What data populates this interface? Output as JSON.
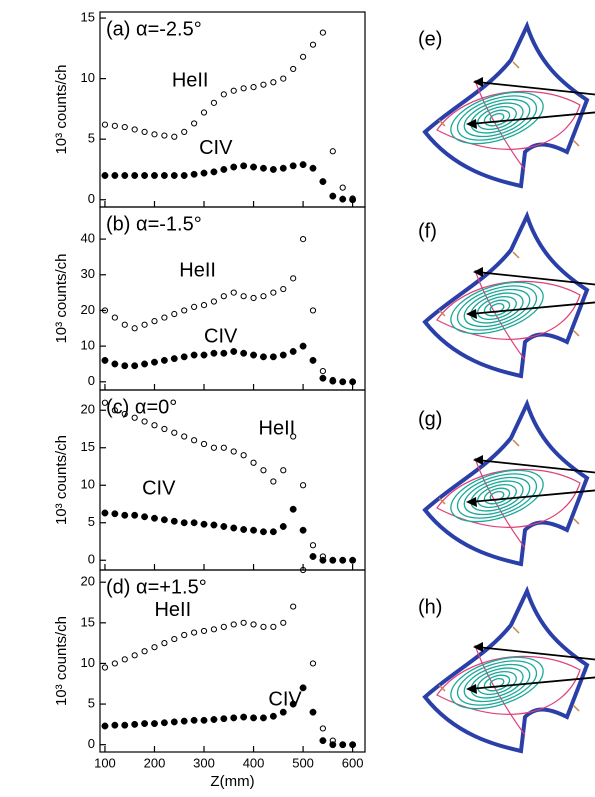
{
  "chart_data": [
    {
      "type": "scatter",
      "title": "(a) α=-2.5°",
      "ylabel": "10³ counts/ch",
      "x": [
        100,
        120,
        140,
        160,
        180,
        200,
        220,
        240,
        260,
        280,
        300,
        320,
        340,
        360,
        380,
        400,
        420,
        440,
        460,
        480,
        500,
        520,
        540,
        560,
        580,
        600
      ],
      "series": [
        {
          "name": "HeII",
          "color": "#000000",
          "marker": "open",
          "values": [
            6.2,
            6.1,
            6.0,
            5.8,
            5.6,
            5.4,
            5.3,
            5.2,
            5.6,
            6.3,
            7.2,
            8.0,
            8.7,
            9.0,
            9.2,
            9.3,
            9.5,
            9.7,
            10.0,
            10.8,
            11.8,
            12.8,
            13.8,
            4.0,
            1.0,
            0.1
          ]
        },
        {
          "name": "CIV",
          "color": "#000000",
          "marker": "filled",
          "values": [
            2.0,
            2.0,
            2.0,
            2.0,
            2.0,
            2.0,
            2.0,
            2.0,
            2.0,
            2.1,
            2.2,
            2.3,
            2.5,
            2.7,
            2.8,
            2.7,
            2.6,
            2.5,
            2.6,
            2.8,
            2.9,
            2.6,
            1.5,
            0.3,
            0.05,
            0
          ]
        }
      ],
      "xlim": [
        90,
        625
      ],
      "xticks": [
        100,
        200,
        300,
        400,
        500,
        600
      ],
      "ylim": [
        -0.6,
        15.5
      ],
      "yticks": [
        0,
        5,
        10,
        15
      ]
    },
    {
      "type": "scatter",
      "title": "(b) α=-1.5°",
      "ylabel": "10³ counts/ch",
      "x": [
        100,
        120,
        140,
        160,
        180,
        200,
        220,
        240,
        260,
        280,
        300,
        320,
        340,
        360,
        380,
        400,
        420,
        440,
        460,
        480,
        500,
        520,
        540,
        560,
        580,
        600
      ],
      "series": [
        {
          "name": "HeII",
          "color": "#000000",
          "marker": "open",
          "values": [
            20,
            18,
            16,
            15,
            16,
            17,
            18,
            19,
            20,
            21,
            21.5,
            22.5,
            24,
            25,
            24,
            23.5,
            24,
            25,
            26,
            29,
            40,
            20,
            3,
            0.5,
            0,
            0
          ]
        },
        {
          "name": "CIV",
          "color": "#000000",
          "marker": "filled",
          "values": [
            6,
            5,
            4.5,
            4.5,
            5,
            5.5,
            6,
            6.5,
            7,
            7.5,
            7.5,
            8,
            8,
            8.5,
            8,
            7.5,
            7,
            7,
            7.5,
            8.5,
            10,
            6,
            1,
            0.2,
            0,
            0
          ]
        }
      ],
      "xlim": [
        90,
        625
      ],
      "xticks": [
        100,
        200,
        300,
        400,
        500,
        600
      ],
      "ylim": [
        -2.3,
        49
      ],
      "yticks": [
        0,
        10,
        20,
        30,
        40
      ]
    },
    {
      "type": "scatter",
      "title": "(c) α=0°",
      "ylabel": "10³ counts/ch",
      "x": [
        100,
        120,
        140,
        160,
        180,
        200,
        220,
        240,
        260,
        280,
        300,
        320,
        340,
        360,
        380,
        400,
        420,
        440,
        460,
        480,
        500,
        520,
        540,
        560,
        580,
        600
      ],
      "series": [
        {
          "name": "HeII",
          "color": "#000000",
          "marker": "open",
          "values": [
            21,
            20,
            19.5,
            19,
            18.5,
            18,
            17.5,
            17,
            16.5,
            16,
            15.5,
            15,
            15,
            14.5,
            14,
            13,
            12,
            10.5,
            12,
            16.5,
            10,
            2,
            0.5,
            0,
            0,
            0
          ]
        },
        {
          "name": "CIV",
          "color": "#000000",
          "marker": "filled",
          "values": [
            6.3,
            6.2,
            6,
            6,
            5.8,
            5.6,
            5.4,
            5.2,
            5,
            5,
            4.8,
            4.7,
            4.5,
            4.3,
            4.1,
            4,
            3.8,
            3.8,
            4.5,
            6.8,
            4,
            0.5,
            0,
            0,
            0,
            0
          ]
        }
      ],
      "xlim": [
        90,
        625
      ],
      "xticks": [
        100,
        200,
        300,
        400,
        500,
        600
      ],
      "ylim": [
        -1.3,
        22.7
      ],
      "yticks": [
        0,
        5,
        10,
        15,
        20
      ]
    },
    {
      "type": "scatter",
      "title": "(d) α=+1.5°",
      "ylabel": "10³ counts/ch",
      "xlabel": "Z(mm)",
      "x": [
        100,
        120,
        140,
        160,
        180,
        200,
        220,
        240,
        260,
        280,
        300,
        320,
        340,
        360,
        380,
        400,
        420,
        440,
        460,
        480,
        500,
        520,
        540,
        560,
        580,
        600
      ],
      "series": [
        {
          "name": "HeII",
          "color": "#000000",
          "marker": "open",
          "values": [
            9.5,
            10,
            10.5,
            11,
            11.5,
            12,
            12.5,
            13,
            13.5,
            13.8,
            14,
            14.2,
            14.5,
            14.8,
            15,
            14.8,
            14.5,
            14.5,
            15,
            17,
            21.5,
            10,
            2,
            0.5,
            0,
            0
          ]
        },
        {
          "name": "CIV",
          "color": "#000000",
          "marker": "filled",
          "values": [
            2.3,
            2.4,
            2.4,
            2.5,
            2.6,
            2.6,
            2.7,
            2.8,
            2.9,
            3,
            3,
            3.1,
            3.2,
            3.3,
            3.4,
            3.3,
            3.3,
            3.5,
            4,
            5,
            7,
            4,
            0.5,
            0,
            0,
            0
          ]
        }
      ],
      "xlim": [
        90,
        625
      ],
      "xticks": [
        100,
        200,
        300,
        400,
        500,
        600
      ],
      "ylim": [
        -0.9,
        21.5
      ],
      "yticks": [
        0,
        5,
        10,
        15,
        20
      ]
    }
  ],
  "diagram_panels": [
    {
      "label": "(e)"
    },
    {
      "label": "(f)"
    },
    {
      "label": "(g)"
    },
    {
      "label": "(h)"
    }
  ]
}
